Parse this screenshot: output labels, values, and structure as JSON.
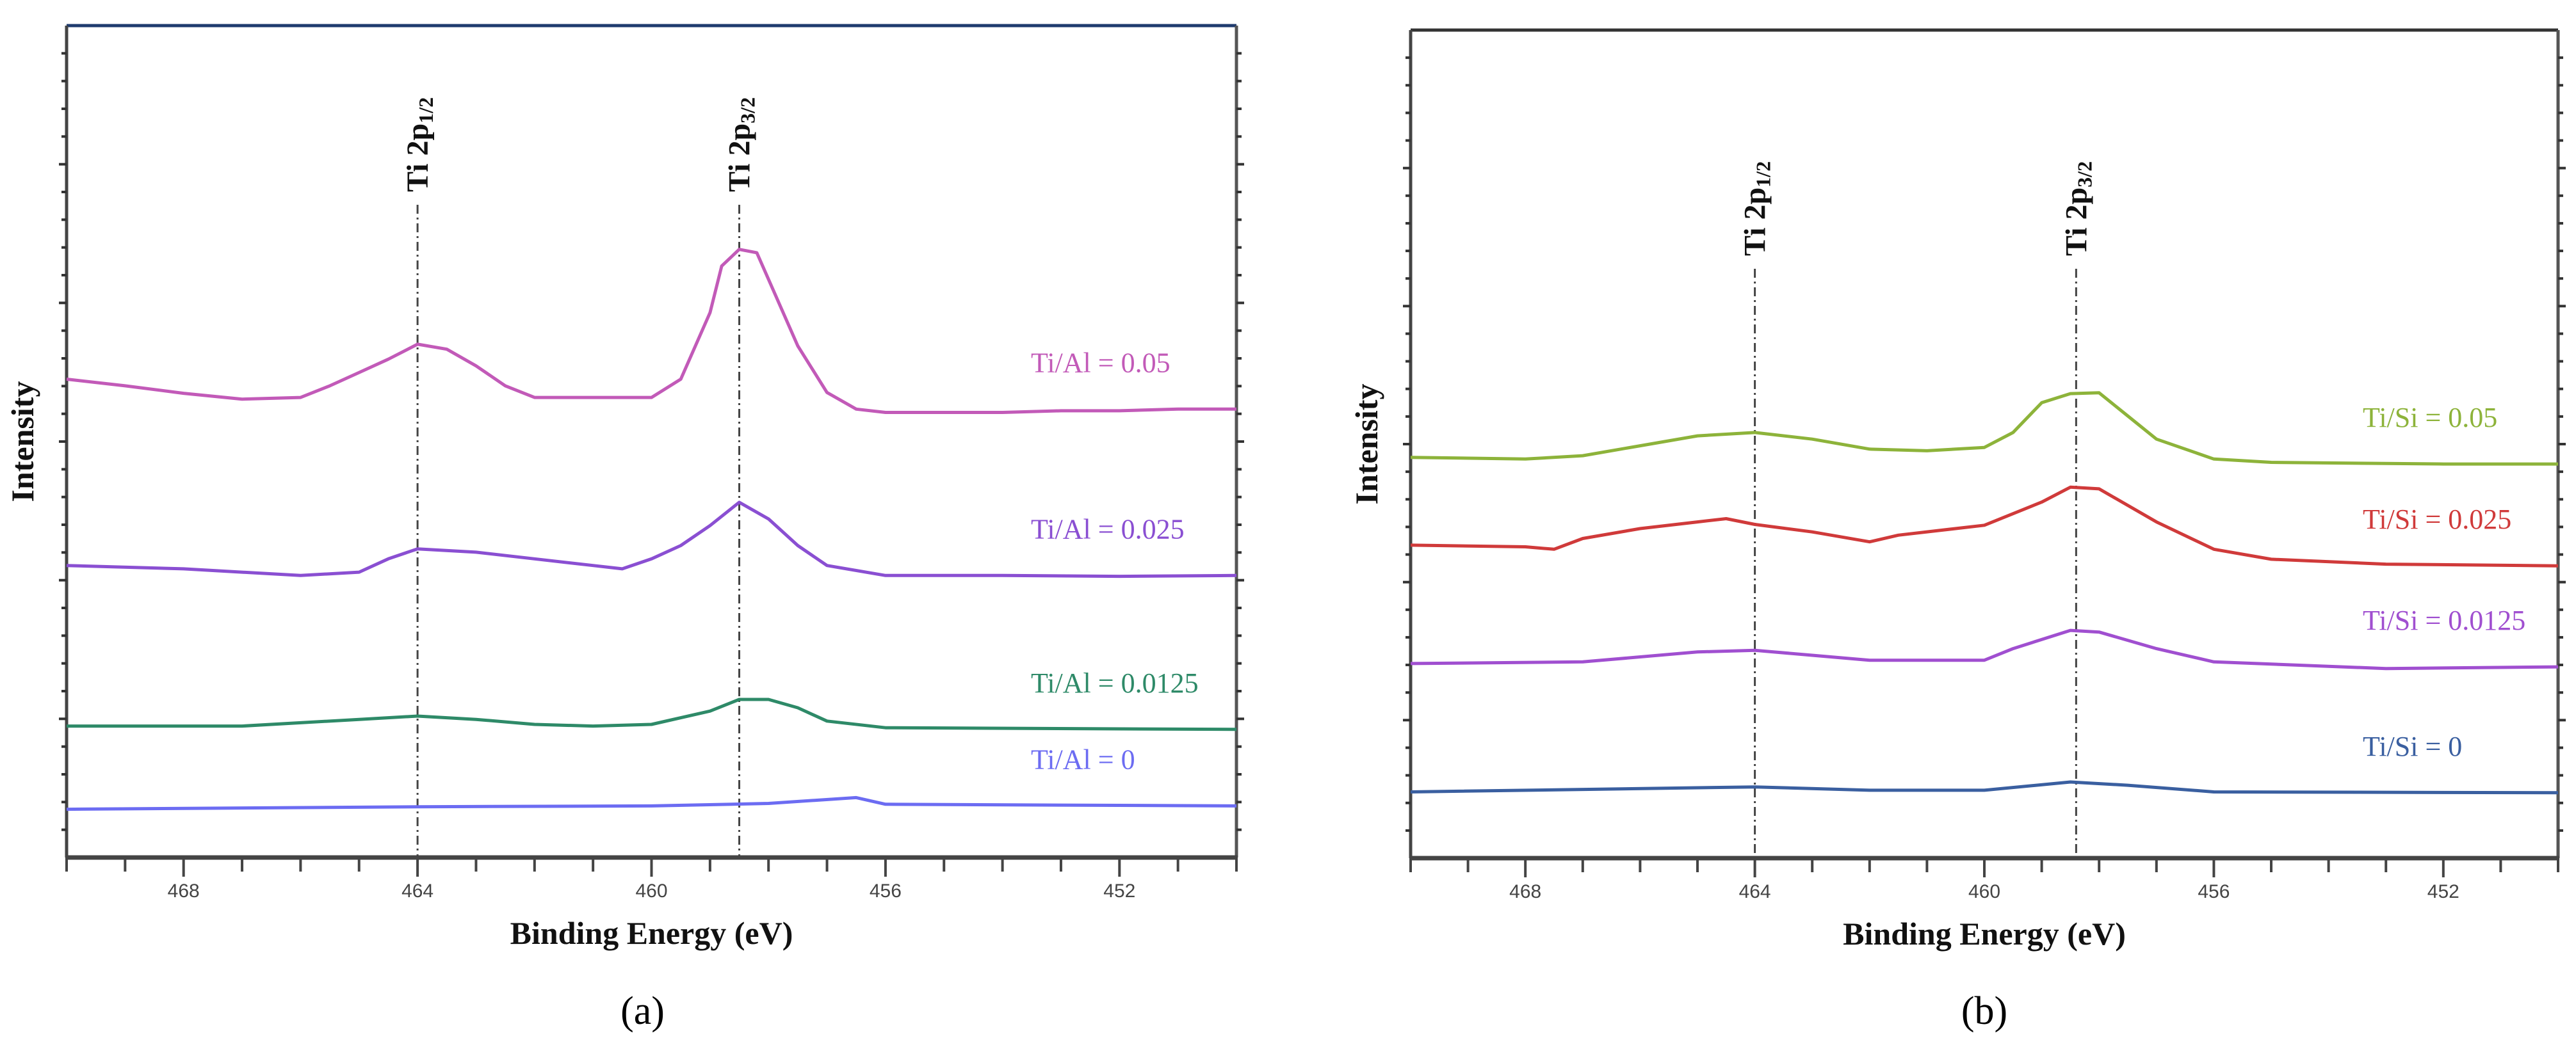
{
  "chart_data": [
    {
      "type": "line",
      "panel_label": "(a)",
      "xlabel": "Binding Energy (eV)",
      "ylabel": "Intensity",
      "xlim": [
        470,
        450
      ],
      "ylim": [
        0,
        100
      ],
      "x_reversed": true,
      "xticks": [
        468,
        464,
        460,
        456,
        452
      ],
      "y_tick_labels_shown": false,
      "grid": false,
      "frame_top_color": "#1f3b6e",
      "reference_lines": [
        {
          "x": 464.0,
          "label_main": "Ti 2p",
          "label_sub": "1/2"
        },
        {
          "x": 458.5,
          "label_main": "Ti 2p",
          "label_sub": "3/2"
        }
      ],
      "series": [
        {
          "name": "Ti/Al = 0.05",
          "color": "#c25ab8",
          "x": [
            470,
            469,
            468,
            467,
            466,
            465.5,
            465,
            464.5,
            464,
            463.5,
            463,
            462.5,
            462,
            461,
            460,
            459.5,
            459,
            458.8,
            458.5,
            458.2,
            458,
            457.5,
            457,
            456.5,
            456,
            455,
            454,
            453,
            452,
            451,
            450
          ],
          "y": [
            57.5,
            56.7,
            55.8,
            55.1,
            55.3,
            56.7,
            58.3,
            59.9,
            61.7,
            61.1,
            59.1,
            56.7,
            55.3,
            55.3,
            55.3,
            57.5,
            65.5,
            71.1,
            73.1,
            72.7,
            69.5,
            61.5,
            55.9,
            53.9,
            53.5,
            53.5,
            53.5,
            53.7,
            53.7,
            53.9,
            53.9
          ]
        },
        {
          "name": "Ti/Al = 0.025",
          "color": "#8a4fd2",
          "x": [
            470,
            468,
            466,
            465,
            464.5,
            464,
            463,
            462,
            461,
            460.5,
            460,
            459.5,
            459,
            458.5,
            458,
            457.5,
            457,
            456,
            454,
            452,
            450
          ],
          "y": [
            35.1,
            34.7,
            33.9,
            34.3,
            35.9,
            37.1,
            36.7,
            35.9,
            35.1,
            34.7,
            35.9,
            37.5,
            39.9,
            42.7,
            40.7,
            37.5,
            35.1,
            33.9,
            33.9,
            33.8,
            33.9
          ]
        },
        {
          "name": "Ti/Al = 0.0125",
          "color": "#2e8a68",
          "x": [
            470,
            467,
            465,
            464,
            463,
            462,
            461,
            460,
            459,
            458.5,
            458,
            457.5,
            457,
            456,
            450
          ],
          "y": [
            15.8,
            15.8,
            16.6,
            17.0,
            16.6,
            16.0,
            15.8,
            16.0,
            17.6,
            19.0,
            19.0,
            18.0,
            16.4,
            15.6,
            15.4
          ]
        },
        {
          "name": "Ti/Al = 0",
          "color": "#6c6cf2",
          "x": [
            470,
            464,
            460,
            458,
            456.5,
            456,
            450
          ],
          "y": [
            5.8,
            6.1,
            6.2,
            6.5,
            7.2,
            6.4,
            6.2
          ]
        }
      ]
    },
    {
      "type": "line",
      "panel_label": "(b)",
      "xlabel": "Binding Energy (eV)",
      "ylabel": "Intensity",
      "xlim": [
        470,
        450
      ],
      "ylim": [
        0,
        100
      ],
      "x_reversed": true,
      "xticks": [
        468,
        464,
        460,
        456,
        452
      ],
      "y_tick_labels_shown": false,
      "grid": false,
      "frame_top_color": "#333333",
      "reference_lines": [
        {
          "x": 464.0,
          "label_main": "Ti 2p",
          "label_sub": "1/2"
        },
        {
          "x": 458.4,
          "label_main": "Ti 2p",
          "label_sub": "3/2"
        }
      ],
      "series": [
        {
          "name": "Ti/Si = 0.05",
          "color": "#8db33a",
          "x": [
            470,
            468,
            467,
            466,
            465,
            464,
            463,
            462,
            461,
            460,
            459.5,
            459,
            458.5,
            458,
            457.5,
            457,
            456,
            455,
            452,
            450
          ],
          "y": [
            48.4,
            48.2,
            48.6,
            49.8,
            51.0,
            51.4,
            50.6,
            49.4,
            49.2,
            49.6,
            51.4,
            55.0,
            56.1,
            56.2,
            53.4,
            50.6,
            48.2,
            47.8,
            47.6,
            47.6
          ]
        },
        {
          "name": "Ti/Si = 0.025",
          "color": "#d03a3a",
          "x": [
            470,
            468,
            467.5,
            467,
            466,
            465,
            464.5,
            464,
            463,
            462,
            461.5,
            460,
            459,
            458.5,
            458,
            457,
            456,
            455,
            453,
            450
          ],
          "y": [
            37.8,
            37.6,
            37.3,
            38.6,
            39.8,
            40.6,
            41.0,
            40.3,
            39.4,
            38.2,
            39.0,
            40.2,
            43.0,
            44.8,
            44.6,
            40.6,
            37.3,
            36.1,
            35.5,
            35.3
          ]
        },
        {
          "name": "Ti/Si = 0.0125",
          "color": "#a04fd0",
          "x": [
            470,
            467,
            465,
            464,
            463,
            462,
            460,
            459.5,
            458.5,
            458,
            457,
            456,
            453,
            450
          ],
          "y": [
            23.5,
            23.7,
            24.9,
            25.1,
            24.5,
            23.9,
            23.9,
            25.3,
            27.5,
            27.3,
            25.3,
            23.7,
            22.9,
            23.1
          ]
        },
        {
          "name": "Ti/Si = 0",
          "color": "#3a5fa0",
          "x": [
            470,
            464,
            462,
            460,
            458.5,
            457.5,
            456,
            450
          ],
          "y": [
            8.0,
            8.6,
            8.2,
            8.2,
            9.2,
            8.8,
            8.0,
            7.9
          ]
        }
      ]
    }
  ]
}
